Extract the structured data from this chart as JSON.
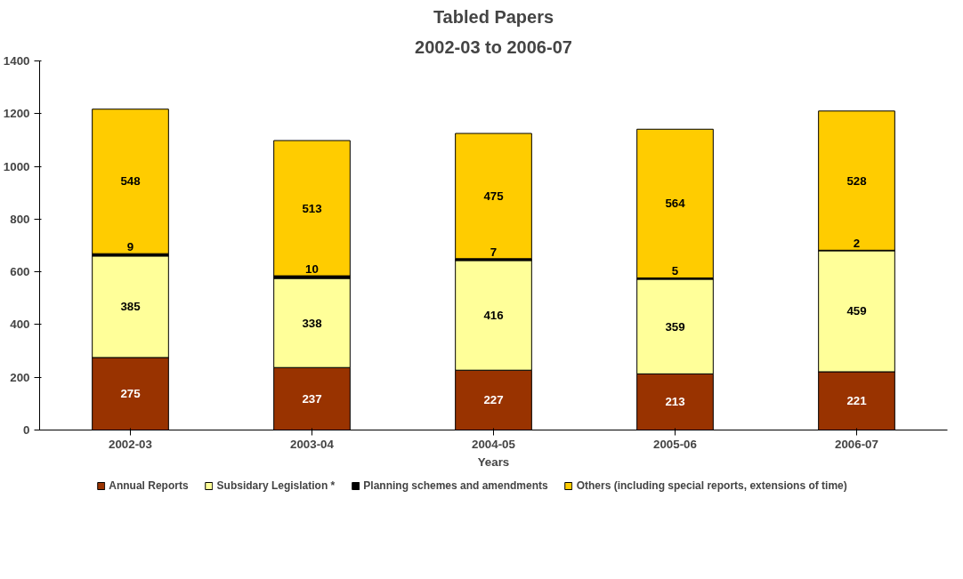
{
  "chart_data": {
    "type": "bar",
    "title": "Tabled Papers",
    "subtitle": "2002-03 to 2006-07",
    "xlabel": "Years",
    "stacked": true,
    "data_labels": true,
    "grid": false,
    "legend": "bottom",
    "categories": [
      "2002-03",
      "2003-04",
      "2004-05",
      "2005-06",
      "2006-07"
    ],
    "ylim": [
      0,
      1400
    ],
    "yticks": [
      0,
      200,
      400,
      600,
      800,
      1000,
      1200,
      1400
    ],
    "series": [
      {
        "name": "Annual Reports",
        "color": "#993300",
        "values": [
          275,
          237,
          227,
          213,
          221
        ]
      },
      {
        "name": "Subsidary Legislation *",
        "color": "#ffff99",
        "values": [
          385,
          338,
          416,
          359,
          459
        ]
      },
      {
        "name": "Planning schemes and amendments",
        "color": "#000000",
        "values": [
          9,
          10,
          7,
          5,
          2
        ]
      },
      {
        "name": "Others (including special reports, extensions of time)",
        "color": "#ffcc00",
        "values": [
          548,
          513,
          475,
          564,
          528
        ]
      }
    ]
  }
}
